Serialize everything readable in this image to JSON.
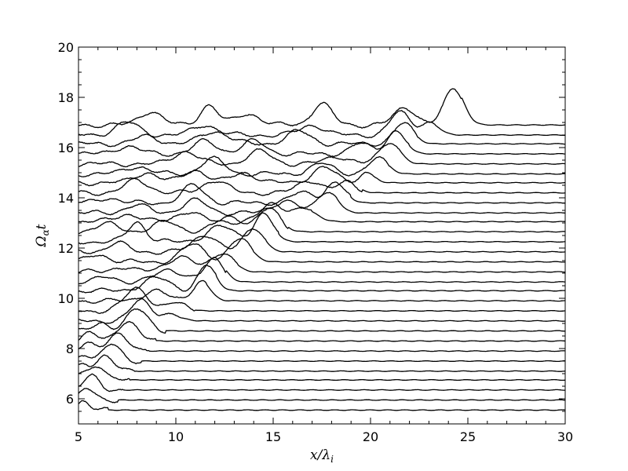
{
  "chart_data": {
    "type": "line",
    "subtype": "stacked-waterfall",
    "xlabel": "x/λ_i",
    "ylabel": "Ω_αt",
    "xlim": [
      5,
      30
    ],
    "ylim": [
      5,
      20
    ],
    "x_ticks": [
      "5",
      "10",
      "15",
      "20",
      "25",
      "30"
    ],
    "y_ticks": [
      "6",
      "8",
      "10",
      "12",
      "14",
      "16",
      "18",
      "20"
    ],
    "x_tick_values": [
      5,
      10,
      15,
      20,
      25,
      30
    ],
    "y_tick_values": [
      6,
      8,
      10,
      12,
      14,
      16,
      18,
      20
    ],
    "grid": false,
    "legend": "none",
    "line_color": "#000000",
    "series": [
      {
        "baseline": 5.55,
        "front": 6.5,
        "peaks": [
          [
            5.2,
            0.35,
            0.3
          ]
        ]
      },
      {
        "baseline": 5.95,
        "front": 7.0,
        "peaks": [
          [
            5.4,
            0.45,
            0.35
          ]
        ]
      },
      {
        "baseline": 6.35,
        "front": 7.3,
        "peaks": [
          [
            5.7,
            0.55,
            0.4
          ]
        ]
      },
      {
        "baseline": 6.75,
        "front": 7.6,
        "peaks": [
          [
            6.0,
            0.6,
            0.4
          ],
          [
            5.1,
            0.2,
            0.3
          ]
        ]
      },
      {
        "baseline": 7.1,
        "front": 7.9,
        "peaks": [
          [
            6.3,
            0.6,
            0.45
          ],
          [
            5.2,
            0.25,
            0.3
          ]
        ]
      },
      {
        "baseline": 7.5,
        "front": 8.2,
        "peaks": [
          [
            6.7,
            0.65,
            0.45
          ],
          [
            5.3,
            0.3,
            0.3
          ]
        ]
      },
      {
        "baseline": 7.9,
        "front": 8.6,
        "peaks": [
          [
            7.1,
            0.7,
            0.5
          ],
          [
            5.4,
            0.35,
            0.35
          ]
        ]
      },
      {
        "baseline": 8.3,
        "front": 9.0,
        "peaks": [
          [
            7.5,
            0.8,
            0.5
          ],
          [
            5.6,
            0.3,
            0.35
          ]
        ]
      },
      {
        "baseline": 8.7,
        "front": 9.5,
        "peaks": [
          [
            8.0,
            0.85,
            0.55
          ],
          [
            6.2,
            0.3,
            0.4
          ]
        ]
      },
      {
        "baseline": 9.1,
        "front": 10.2,
        "peaks": [
          [
            8.2,
            0.8,
            0.5
          ],
          [
            9.6,
            0.25,
            0.6
          ]
        ]
      },
      {
        "baseline": 9.5,
        "front": 11.0,
        "peaks": [
          [
            8.0,
            0.9,
            0.6
          ],
          [
            10.0,
            0.3,
            0.5
          ]
        ]
      },
      {
        "baseline": 9.9,
        "front": 11.6,
        "peaks": [
          [
            8.9,
            0.4,
            0.6
          ],
          [
            11.3,
            0.8,
            0.45
          ]
        ]
      },
      {
        "baseline": 10.3,
        "front": 12.1,
        "peaks": [
          [
            11.6,
            1.0,
            0.45
          ],
          [
            9.0,
            0.5,
            0.7
          ]
        ]
      },
      {
        "baseline": 10.65,
        "front": 12.6,
        "peaks": [
          [
            12.0,
            0.9,
            0.5
          ],
          [
            9.7,
            0.5,
            0.7
          ],
          [
            6.5,
            0.2,
            0.5
          ]
        ]
      },
      {
        "baseline": 11.05,
        "front": 13.2,
        "peaks": [
          [
            12.4,
            0.8,
            0.55
          ],
          [
            10.2,
            0.6,
            0.7
          ],
          [
            7.2,
            0.2,
            0.5
          ]
        ]
      },
      {
        "baseline": 11.45,
        "front": 14.0,
        "peaks": [
          [
            13.3,
            0.9,
            0.55
          ],
          [
            10.9,
            0.7,
            0.6
          ],
          [
            6.0,
            0.3,
            0.5
          ]
        ]
      },
      {
        "baseline": 11.85,
        "front": 14.7,
        "peaks": [
          [
            14.0,
            1.0,
            0.5
          ],
          [
            11.5,
            0.7,
            0.6
          ],
          [
            7.0,
            0.35,
            0.5
          ]
        ]
      },
      {
        "baseline": 12.25,
        "front": 15.3,
        "peaks": [
          [
            14.5,
            1.1,
            0.5
          ],
          [
            12.3,
            0.6,
            0.7
          ],
          [
            8.0,
            0.8,
            0.45
          ]
        ]
      },
      {
        "baseline": 12.65,
        "front": 15.8,
        "peaks": [
          [
            14.8,
            0.9,
            0.55
          ],
          [
            12.8,
            0.6,
            0.7
          ],
          [
            9.5,
            0.4,
            0.6
          ],
          [
            6.5,
            0.3,
            0.6
          ]
        ]
      },
      {
        "baseline": 13.05,
        "front": 17.0,
        "peaks": [
          [
            15.0,
            0.7,
            0.6
          ],
          [
            16.6,
            0.5,
            0.6
          ],
          [
            10.6,
            0.4,
            0.6
          ],
          [
            7.5,
            0.3,
            0.6
          ]
        ]
      },
      {
        "baseline": 13.4,
        "front": 18.3,
        "peaks": [
          [
            17.8,
            0.9,
            0.5
          ],
          [
            15.6,
            0.5,
            0.6
          ],
          [
            11.0,
            0.5,
            0.6
          ],
          [
            8.0,
            0.3,
            0.6
          ]
        ]
      },
      {
        "baseline": 13.8,
        "front": 19.0,
        "peaks": [
          [
            18.2,
            0.8,
            0.5
          ],
          [
            16.5,
            0.4,
            0.6
          ],
          [
            10.9,
            0.7,
            0.55
          ],
          [
            6.5,
            0.2,
            0.5
          ]
        ]
      },
      {
        "baseline": 14.2,
        "front": 19.6,
        "peaks": [
          [
            18.8,
            0.4,
            0.5
          ],
          [
            16.9,
            0.5,
            0.6
          ],
          [
            12.0,
            0.5,
            0.6
          ],
          [
            8.0,
            0.5,
            0.6
          ]
        ]
      },
      {
        "baseline": 14.6,
        "front": 20.3,
        "peaks": [
          [
            17.6,
            0.6,
            0.6
          ],
          [
            19.8,
            0.4,
            0.4
          ],
          [
            13.5,
            0.4,
            0.6
          ],
          [
            11.0,
            0.5,
            0.6
          ],
          [
            8.5,
            0.4,
            0.6
          ]
        ]
      },
      {
        "baseline": 14.95,
        "front": 21.0,
        "peaks": [
          [
            20.4,
            0.6,
            0.5
          ],
          [
            17.5,
            0.4,
            0.6
          ],
          [
            11.9,
            0.6,
            0.6
          ],
          [
            8.0,
            0.3,
            0.6
          ]
        ]
      },
      {
        "baseline": 15.35,
        "front": 21.6,
        "peaks": [
          [
            21.0,
            0.9,
            0.5
          ],
          [
            18.3,
            0.3,
            0.6
          ],
          [
            14.3,
            0.5,
            0.6
          ],
          [
            10.5,
            0.5,
            0.6
          ]
        ]
      },
      {
        "baseline": 15.75,
        "front": 22.0,
        "peaks": [
          [
            21.3,
            0.9,
            0.5
          ],
          [
            19.5,
            0.4,
            0.5
          ],
          [
            14.0,
            0.5,
            0.6
          ],
          [
            11.5,
            0.5,
            0.6
          ],
          [
            7.5,
            0.3,
            0.6
          ]
        ]
      },
      {
        "baseline": 16.15,
        "front": 22.5,
        "peaks": [
          [
            21.7,
            0.8,
            0.5
          ],
          [
            16.3,
            0.5,
            0.6
          ],
          [
            12.0,
            0.5,
            0.7
          ],
          [
            8.5,
            0.3,
            0.6
          ]
        ]
      },
      {
        "baseline": 16.5,
        "front": 23.5,
        "peaks": [
          [
            21.5,
            0.9,
            0.5
          ],
          [
            23.0,
            0.5,
            0.5
          ],
          [
            17.0,
            0.4,
            0.6
          ],
          [
            11.5,
            0.4,
            0.6
          ],
          [
            7.5,
            0.5,
            0.6
          ]
        ]
      },
      {
        "baseline": 16.9,
        "front": 24.7,
        "peaks": [
          [
            24.3,
            1.45,
            0.5
          ],
          [
            17.5,
            0.85,
            0.5
          ],
          [
            21.8,
            0.7,
            0.55
          ],
          [
            11.7,
            0.8,
            0.45
          ],
          [
            8.7,
            0.55,
            0.55
          ],
          [
            13.7,
            0.45,
            0.6
          ]
        ]
      }
    ]
  }
}
